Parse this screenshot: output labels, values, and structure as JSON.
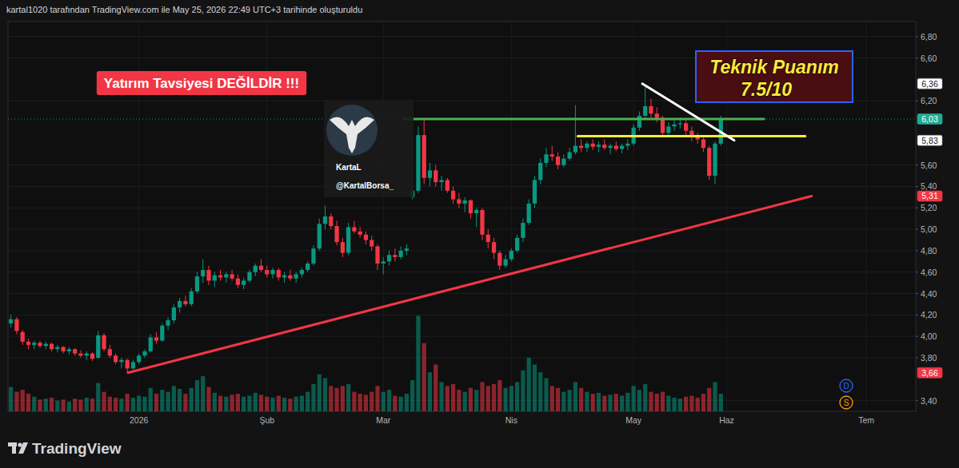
{
  "header": "kartal1020 tarafından TradingView.com ile May 25, 2026 22:49 UTC+3 tarihinde oluşturuldu",
  "footer": "TradingView",
  "notice": {
    "text": "Yatırım Tavsiyesi DEĞİLDİR !!!",
    "color": "#f23645"
  },
  "score_box": {
    "title": "Teknik Puanım",
    "score": "7.5/10"
  },
  "watermark": {
    "name": "KartaL",
    "handle": "@KartalBorsa_"
  },
  "indicators": [
    "D",
    "S"
  ],
  "chart_data": {
    "type": "candlestick",
    "grid": true,
    "ylim": [
      3.3,
      6.94
    ],
    "y2lim": [
      0,
      40
    ],
    "yticks": [
      {
        "value": 3.4,
        "label": "3,40"
      },
      {
        "value": 3.8,
        "label": "3,80"
      },
      {
        "value": 4.0,
        "label": "4,00"
      },
      {
        "value": 4.2,
        "label": "4,20"
      },
      {
        "value": 4.4,
        "label": "4,40"
      },
      {
        "value": 4.6,
        "label": "4,60"
      },
      {
        "value": 4.8,
        "label": "4,80"
      },
      {
        "value": 5.0,
        "label": "5,00"
      },
      {
        "value": 5.2,
        "label": "5,20"
      },
      {
        "value": 5.4,
        "label": "5,40"
      },
      {
        "value": 5.6,
        "label": "5,60"
      },
      {
        "value": 6.2,
        "label": "6,20"
      },
      {
        "value": 6.6,
        "label": "6,60"
      },
      {
        "value": 6.8,
        "label": "6,80"
      }
    ],
    "categories": [
      null,
      null,
      null,
      null,
      null,
      null,
      null,
      null,
      null,
      null,
      null,
      null,
      null,
      null,
      null,
      null,
      null,
      null,
      null,
      null,
      null,
      null,
      "2026",
      null,
      null,
      null,
      null,
      null,
      null,
      null,
      null,
      null,
      null,
      null,
      null,
      null,
      null,
      null,
      null,
      null,
      null,
      null,
      null,
      null,
      "Şub",
      null,
      null,
      null,
      null,
      null,
      null,
      null,
      null,
      null,
      null,
      null,
      null,
      null,
      null,
      null,
      null,
      null,
      null,
      null,
      "Mar",
      null,
      null,
      null,
      null,
      null,
      null,
      null,
      null,
      null,
      null,
      null,
      null,
      null,
      null,
      null,
      null,
      null,
      null,
      null,
      null,
      null,
      "Nis",
      null,
      null,
      null,
      null,
      null,
      null,
      null,
      null,
      null,
      null,
      null,
      null,
      null,
      null,
      null,
      null,
      null,
      null,
      null,
      null,
      "May",
      null,
      null,
      null,
      null,
      null,
      null,
      null,
      null,
      null,
      null,
      null,
      null,
      null,
      null,
      null,
      "Haz",
      null,
      null,
      null,
      null,
      null,
      null,
      null,
      null,
      null,
      null,
      null,
      null,
      null,
      null,
      null,
      null,
      null,
      null,
      null,
      null,
      null,
      null,
      null,
      "Tem",
      null,
      null,
      null,
      null,
      null,
      null,
      null,
      null
    ],
    "open": [
      4.12,
      4.16,
      4.04,
      3.95,
      3.92,
      3.94,
      3.91,
      3.93,
      3.88,
      3.9,
      3.86,
      3.88,
      3.84,
      3.82,
      3.84,
      3.8,
      4.01,
      3.88,
      3.82,
      3.76,
      3.78,
      3.7,
      3.76,
      3.82,
      3.86,
      3.99,
      3.96,
      4.1,
      4.15,
      4.27,
      4.33,
      4.3,
      4.42,
      4.56,
      4.62,
      4.52,
      4.57,
      4.55,
      4.58,
      4.54,
      4.48,
      4.52,
      4.6,
      4.66,
      4.62,
      4.58,
      4.62,
      4.55,
      4.57,
      4.54,
      4.58,
      4.62,
      4.68,
      4.82,
      5.05,
      5.12,
      5.03,
      4.88,
      4.78,
      5.02,
      4.98,
      4.95,
      4.9,
      4.84,
      4.68,
      4.7,
      4.76,
      4.74,
      4.8,
      5.3,
      5.36,
      5.88,
      5.48,
      5.55,
      5.44,
      5.46,
      5.36,
      5.28,
      5.24,
      5.27,
      5.15,
      5.18,
      4.95,
      4.88,
      4.78,
      4.66,
      4.72,
      4.8,
      4.92,
      5.06,
      5.24,
      5.46,
      5.62,
      5.7,
      5.68,
      5.6,
      5.66,
      5.72,
      5.78,
      5.76,
      5.8,
      5.77,
      5.79,
      5.76,
      5.78,
      5.75,
      5.78,
      5.8,
      5.95,
      6.06,
      6.15,
      6.08,
      6.04,
      5.9,
      5.96,
      5.98,
      5.99,
      5.92,
      5.86,
      5.84,
      5.76,
      5.5,
      5.8,
      null,
      null,
      null,
      null,
      null,
      null,
      null,
      null,
      null,
      null,
      null,
      null,
      null,
      null,
      null,
      null,
      null,
      null,
      null,
      null,
      null,
      null,
      null,
      null,
      null,
      null,
      null,
      null,
      null,
      null,
      null,
      null,
      null
    ],
    "high": [
      4.2,
      4.18,
      4.06,
      3.98,
      3.96,
      3.96,
      3.95,
      3.94,
      3.92,
      3.91,
      3.9,
      3.89,
      3.87,
      3.86,
      3.85,
      4.05,
      4.03,
      3.92,
      3.84,
      3.8,
      3.79,
      3.78,
      3.84,
      3.88,
      4.02,
      4.04,
      4.12,
      4.18,
      4.3,
      4.36,
      4.38,
      4.45,
      4.6,
      4.72,
      4.66,
      4.6,
      4.62,
      4.6,
      4.62,
      4.58,
      4.55,
      4.62,
      4.68,
      4.72,
      4.66,
      4.64,
      4.64,
      4.6,
      4.62,
      4.6,
      4.64,
      4.7,
      4.85,
      5.1,
      5.22,
      5.15,
      5.08,
      4.92,
      5.06,
      5.08,
      5.02,
      4.98,
      4.94,
      4.86,
      4.74,
      4.8,
      4.82,
      4.84,
      4.86,
      5.42,
      5.96,
      6.02,
      5.62,
      5.6,
      5.5,
      5.48,
      5.4,
      5.34,
      5.3,
      5.28,
      5.2,
      5.2,
      5.0,
      4.92,
      4.8,
      4.76,
      4.82,
      4.95,
      5.1,
      5.28,
      5.5,
      5.66,
      5.76,
      5.78,
      5.72,
      5.7,
      5.76,
      6.16,
      5.84,
      5.82,
      5.84,
      5.82,
      5.84,
      5.8,
      5.82,
      5.8,
      5.84,
      5.98,
      6.1,
      6.33,
      6.22,
      6.14,
      6.06,
      6.0,
      6.02,
      6.04,
      6.02,
      5.96,
      5.9,
      5.86,
      5.78,
      5.82,
      6.06,
      null,
      null,
      null,
      null,
      null,
      null,
      null,
      null,
      null,
      null,
      null,
      null,
      null,
      null,
      null,
      null,
      null,
      null,
      null,
      null,
      null,
      null,
      null,
      null,
      null,
      null,
      null,
      null,
      null,
      null,
      null,
      null,
      null
    ],
    "low": [
      4.08,
      4.02,
      3.92,
      3.88,
      3.88,
      3.89,
      3.88,
      3.86,
      3.85,
      3.84,
      3.83,
      3.82,
      3.8,
      3.78,
      3.77,
      3.79,
      3.86,
      3.8,
      3.74,
      3.7,
      3.66,
      3.69,
      3.74,
      3.8,
      3.85,
      3.93,
      3.95,
      4.06,
      4.12,
      4.22,
      4.28,
      4.28,
      4.4,
      4.5,
      4.48,
      4.46,
      4.52,
      4.5,
      4.52,
      4.45,
      4.44,
      4.5,
      4.56,
      4.6,
      4.55,
      4.54,
      4.52,
      4.5,
      4.52,
      4.5,
      4.55,
      4.6,
      4.66,
      4.8,
      5.0,
      5.0,
      4.85,
      4.74,
      4.76,
      4.96,
      4.92,
      4.86,
      4.8,
      4.62,
      4.58,
      4.66,
      4.7,
      4.72,
      4.76,
      5.28,
      5.34,
      5.42,
      5.4,
      5.4,
      5.36,
      5.34,
      5.24,
      5.2,
      5.16,
      5.1,
      5.02,
      4.9,
      4.82,
      4.72,
      4.62,
      4.64,
      4.7,
      4.78,
      4.88,
      5.04,
      5.2,
      5.42,
      5.58,
      5.64,
      5.56,
      5.58,
      5.64,
      5.7,
      5.72,
      5.72,
      5.74,
      5.72,
      5.74,
      5.7,
      5.73,
      5.71,
      5.74,
      5.78,
      5.92,
      6.02,
      6.04,
      6.0,
      5.86,
      5.86,
      5.92,
      5.94,
      5.88,
      5.82,
      5.8,
      5.72,
      5.46,
      5.42,
      5.78,
      null,
      null,
      null,
      null,
      null,
      null,
      null,
      null,
      null,
      null,
      null,
      null,
      null,
      null,
      null,
      null,
      null,
      null,
      null,
      null,
      null,
      null,
      null,
      null,
      null,
      null,
      null,
      null,
      null,
      null,
      null,
      null,
      null
    ],
    "close": [
      4.16,
      4.05,
      3.95,
      3.92,
      3.94,
      3.91,
      3.93,
      3.88,
      3.9,
      3.86,
      3.88,
      3.84,
      3.82,
      3.84,
      3.79,
      4.01,
      3.88,
      3.82,
      3.76,
      3.78,
      3.7,
      3.76,
      3.82,
      3.86,
      3.99,
      3.96,
      4.1,
      4.15,
      4.27,
      4.33,
      4.3,
      4.42,
      4.56,
      4.62,
      4.52,
      4.57,
      4.55,
      4.58,
      4.54,
      4.48,
      4.52,
      4.6,
      4.66,
      4.62,
      4.58,
      4.62,
      4.55,
      4.57,
      4.54,
      4.58,
      4.62,
      4.68,
      4.82,
      5.05,
      5.12,
      5.03,
      4.88,
      4.78,
      5.02,
      4.98,
      4.95,
      4.9,
      4.84,
      4.68,
      4.7,
      4.76,
      4.74,
      4.8,
      4.82,
      5.36,
      5.88,
      5.48,
      5.55,
      5.44,
      5.46,
      5.36,
      5.28,
      5.24,
      5.27,
      5.15,
      5.18,
      4.95,
      4.88,
      4.78,
      4.66,
      4.72,
      4.8,
      4.92,
      5.06,
      5.24,
      5.46,
      5.62,
      5.7,
      5.68,
      5.6,
      5.66,
      5.72,
      5.78,
      5.76,
      5.8,
      5.77,
      5.79,
      5.76,
      5.78,
      5.75,
      5.78,
      5.8,
      5.95,
      6.06,
      6.15,
      6.08,
      6.04,
      5.9,
      5.96,
      5.98,
      5.99,
      5.92,
      5.86,
      5.84,
      5.76,
      5.5,
      5.8,
      6.03,
      null,
      null,
      null,
      null,
      null,
      null,
      null,
      null,
      null,
      null,
      null,
      null,
      null,
      null,
      null,
      null,
      null,
      null,
      null,
      null,
      null,
      null,
      null,
      null,
      null,
      null,
      null,
      null,
      null,
      null,
      null,
      null,
      null
    ],
    "volume": [
      2.5,
      2.0,
      2.2,
      1.8,
      1.5,
      1.2,
      1.3,
      1.4,
      1.1,
      1.2,
      1.0,
      1.3,
      1.2,
      1.4,
      1.3,
      2.9,
      2.0,
      1.5,
      1.4,
      1.3,
      1.8,
      1.4,
      1.6,
      1.5,
      2.4,
      1.8,
      2.2,
      2.0,
      2.6,
      2.3,
      1.8,
      2.4,
      3.2,
      3.6,
      2.5,
      1.9,
      1.6,
      1.5,
      1.7,
      1.8,
      1.5,
      1.6,
      1.9,
      1.7,
      1.5,
      1.4,
      1.6,
      1.4,
      1.3,
      1.5,
      1.6,
      2.0,
      2.8,
      3.8,
      3.4,
      2.6,
      2.4,
      2.6,
      2.8,
      2.0,
      1.8,
      1.7,
      2.0,
      2.6,
      2.0,
      2.2,
      1.6,
      1.5,
      1.8,
      3.2,
      9.8,
      7.0,
      4.0,
      4.8,
      3.0,
      2.6,
      2.8,
      2.2,
      2.0,
      2.4,
      2.2,
      3.0,
      2.6,
      2.8,
      3.2,
      2.4,
      2.6,
      3.0,
      4.2,
      5.5,
      4.8,
      4.0,
      3.4,
      2.6,
      2.4,
      2.0,
      2.2,
      3.0,
      2.4,
      2.0,
      1.8,
      1.9,
      1.6,
      1.7,
      1.8,
      1.6,
      1.9,
      2.6,
      2.2,
      2.8,
      2.0,
      1.8,
      2.0,
      1.6,
      1.4,
      1.3,
      1.5,
      1.6,
      1.4,
      1.8,
      2.4,
      3.0,
      1.8,
      null,
      null,
      null,
      null,
      null,
      null,
      null,
      null,
      null,
      null,
      null,
      null,
      null,
      null,
      null,
      null,
      null,
      null,
      null,
      null,
      null,
      null,
      null,
      null,
      null,
      null,
      null,
      null,
      null,
      null,
      null,
      null,
      null
    ],
    "lines": [
      {
        "x": [
          20.1,
          137.6
        ],
        "y": [
          3.66,
          5.31
        ],
        "color": "#f23645"
      },
      {
        "x": [
          67.5,
          129.4
        ],
        "y": [
          6.03,
          6.03
        ],
        "color": "#4caf50"
      },
      {
        "x": [
          97.4,
          136.5
        ],
        "y": [
          5.87,
          5.87
        ],
        "color": "#ffeb3b"
      },
      {
        "x": [
          108.5,
          124.3
        ],
        "y": [
          6.36,
          5.83
        ],
        "color": "#ffffff"
      }
    ],
    "price_labels": [
      {
        "value": 6.36,
        "label": "6,36",
        "color": "#ffffff"
      },
      {
        "value": 6.03,
        "label": "6,03",
        "color": "#22ab94"
      },
      {
        "value": 5.83,
        "label": "5,83",
        "color": "#ffffff"
      },
      {
        "value": 5.31,
        "label": "5,31",
        "color": "#f23645"
      },
      {
        "value": 3.66,
        "label": "3,66",
        "color": "#f23645"
      }
    ]
  }
}
